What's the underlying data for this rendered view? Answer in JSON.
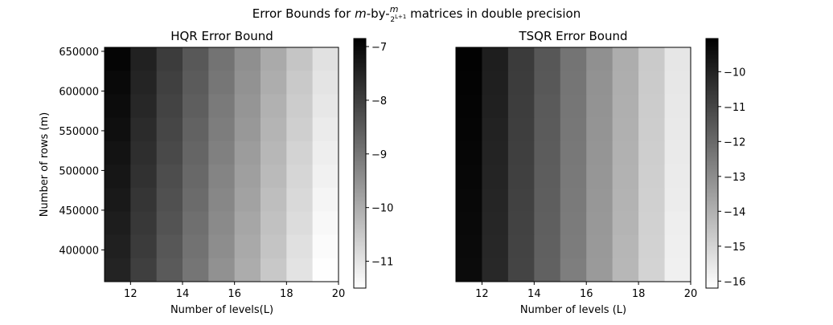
{
  "figure": {
    "suptitle_before": "Error Bounds for ",
    "suptitle_m": "m",
    "suptitle_mid": "-by-",
    "suptitle_frac_num": "m",
    "suptitle_frac_den": "2",
    "suptitle_frac_exp": "L+1",
    "suptitle_after": " matrices in double precision"
  },
  "chart_data": [
    {
      "type": "heatmap",
      "title": "HQR Error Bound",
      "xlabel": "Number of levels(L)",
      "ylabel": "Number of rows (m)",
      "xlim": [
        11,
        20
      ],
      "ylim": [
        360000,
        655000
      ],
      "xticks": [
        12,
        14,
        16,
        18,
        20
      ],
      "yticks": [
        400000,
        450000,
        500000,
        550000,
        600000,
        650000
      ],
      "x_centers": [
        11.5,
        12.5,
        13.5,
        14.5,
        15.5,
        16.5,
        17.5,
        18.5,
        19.5
      ],
      "y_rows": 10,
      "colormap": "gray_r",
      "colorbar": {
        "vmin": -11.5,
        "vmax": -6.85,
        "ticks": [
          -7,
          -8,
          -9,
          -10,
          -11
        ]
      },
      "values_top_row": [
        -6.95,
        -7.45,
        -7.95,
        -8.45,
        -8.95,
        -9.45,
        -9.95,
        -10.45,
        -10.95
      ],
      "row_shift_per_step": -0.06
    },
    {
      "type": "heatmap",
      "title": "TSQR Error Bound",
      "xlabel": "Number of levels (L)",
      "ylabel": "",
      "xlim": [
        11,
        20
      ],
      "ylim": [
        360000,
        655000
      ],
      "xticks": [
        12,
        14,
        16,
        18,
        20
      ],
      "yticks": [],
      "x_centers": [
        11.5,
        12.5,
        13.5,
        14.5,
        15.5,
        16.5,
        17.5,
        18.5,
        19.5
      ],
      "y_rows": 10,
      "colormap": "gray_r",
      "colorbar": {
        "vmin": -16.2,
        "vmax": -9.05,
        "ticks": [
          -10,
          -11,
          -12,
          -13,
          -14,
          -15,
          -16
        ]
      },
      "values_top_row": [
        -9.1,
        -9.9,
        -10.7,
        -11.5,
        -12.3,
        -13.1,
        -13.9,
        -14.7,
        -15.5
      ],
      "row_shift_per_step": -0.03
    }
  ]
}
